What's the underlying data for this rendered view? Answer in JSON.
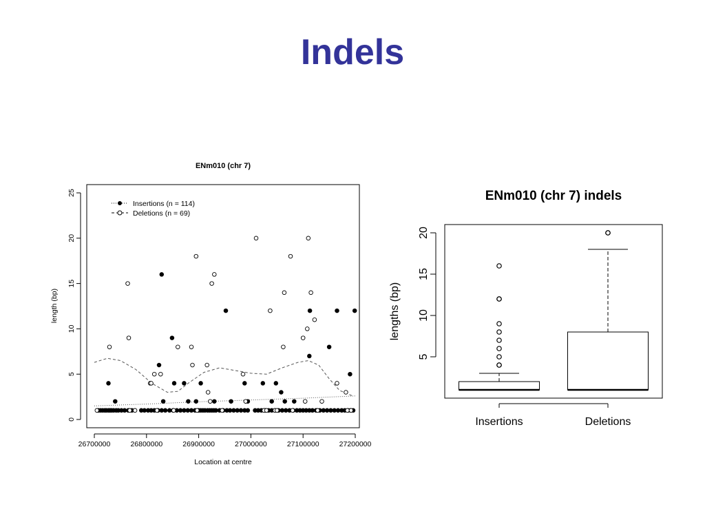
{
  "slide": {
    "title": "Indels"
  },
  "chart_data": [
    {
      "type": "scatter",
      "title": "ENm010 (chr 7)",
      "xlabel": "Location at centre",
      "ylabel": "length (bp)",
      "xlim": [
        26700000,
        27200000
      ],
      "ylim": [
        0,
        25
      ],
      "x_ticks": [
        "26700000",
        "26800000",
        "26900000",
        "27000000",
        "27100000",
        "27200000"
      ],
      "y_ticks": [
        "0",
        "5",
        "10",
        "15",
        "20",
        "25"
      ],
      "legend": {
        "position": "top-left"
      },
      "series": [
        {
          "name": "Insertions (n = 114)",
          "marker": "filled-circle",
          "color": "#000000",
          "points": [
            [
              26708000,
              1
            ],
            [
              26712000,
              1
            ],
            [
              26716000,
              1
            ],
            [
              26720000,
              1
            ],
            [
              26723000,
              1
            ],
            [
              26727000,
              1
            ],
            [
              26730000,
              1
            ],
            [
              26733000,
              1
            ],
            [
              26737000,
              1
            ],
            [
              26742000,
              1
            ],
            [
              26746000,
              1
            ],
            [
              26752000,
              1
            ],
            [
              26758000,
              1
            ],
            [
              26765000,
              1
            ],
            [
              26772000,
              1
            ],
            [
              26790000,
              1
            ],
            [
              26796000,
              1
            ],
            [
              26803000,
              1
            ],
            [
              26809000,
              1
            ],
            [
              26815000,
              1
            ],
            [
              26822000,
              1
            ],
            [
              26829000,
              1
            ],
            [
              26836000,
              1
            ],
            [
              26844000,
              1
            ],
            [
              26851000,
              1
            ],
            [
              26858000,
              1
            ],
            [
              26865000,
              1
            ],
            [
              26872000,
              1
            ],
            [
              26879000,
              1
            ],
            [
              26886000,
              1
            ],
            [
              26893000,
              1
            ],
            [
              26900000,
              1
            ],
            [
              26904000,
              1
            ],
            [
              26908000,
              1
            ],
            [
              26912000,
              1
            ],
            [
              26917000,
              1
            ],
            [
              26921000,
              1
            ],
            [
              26925000,
              1
            ],
            [
              26929000,
              1
            ],
            [
              26933000,
              1
            ],
            [
              26940000,
              1
            ],
            [
              26947000,
              1
            ],
            [
              26954000,
              1
            ],
            [
              26960000,
              1
            ],
            [
              26967000,
              1
            ],
            [
              26974000,
              1
            ],
            [
              26981000,
              1
            ],
            [
              26988000,
              1
            ],
            [
              26994000,
              1
            ],
            [
              27008000,
              1
            ],
            [
              27014000,
              1
            ],
            [
              27020000,
              1
            ],
            [
              27027000,
              1
            ],
            [
              27034000,
              1
            ],
            [
              27040000,
              1
            ],
            [
              27046000,
              1
            ],
            [
              27053000,
              1
            ],
            [
              27060000,
              1
            ],
            [
              27067000,
              1
            ],
            [
              27074000,
              1
            ],
            [
              27081000,
              1
            ],
            [
              27088000,
              1
            ],
            [
              27094000,
              1
            ],
            [
              27100000,
              1
            ],
            [
              27106000,
              1
            ],
            [
              27112000,
              1
            ],
            [
              27118000,
              1
            ],
            [
              27125000,
              1
            ],
            [
              27132000,
              1
            ],
            [
              27139000,
              1
            ],
            [
              27146000,
              1
            ],
            [
              27153000,
              1
            ],
            [
              27160000,
              1
            ],
            [
              27167000,
              1
            ],
            [
              27174000,
              1
            ],
            [
              27180000,
              1
            ],
            [
              27186000,
              1
            ],
            [
              27191000,
              1
            ],
            [
              27196000,
              1
            ],
            [
              26727000,
              4
            ],
            [
              26740000,
              2
            ],
            [
              26824000,
              6
            ],
            [
              26829000,
              16
            ],
            [
              26832000,
              2
            ],
            [
              26849000,
              9
            ],
            [
              26853000,
              4
            ],
            [
              26872000,
              4
            ],
            [
              26880000,
              2
            ],
            [
              26895000,
              2
            ],
            [
              26904000,
              4
            ],
            [
              26930000,
              2
            ],
            [
              26952000,
              12
            ],
            [
              26962000,
              2
            ],
            [
              26988000,
              4
            ],
            [
              26994000,
              2
            ],
            [
              27023000,
              4
            ],
            [
              27040000,
              2
            ],
            [
              27048000,
              4
            ],
            [
              27058000,
              3
            ],
            [
              27065000,
              2
            ],
            [
              27083000,
              2
            ],
            [
              27112000,
              7
            ],
            [
              27113000,
              12
            ],
            [
              27150000,
              8
            ],
            [
              27165000,
              12
            ],
            [
              27190000,
              5
            ],
            [
              27199000,
              12
            ]
          ]
        },
        {
          "name": "Deletions (n = 69)",
          "marker": "open-circle",
          "color": "#000000",
          "points": [
            [
              26705000,
              1
            ],
            [
              26729000,
              8
            ],
            [
              26764000,
              15
            ],
            [
              26766000,
              9
            ],
            [
              26768000,
              1
            ],
            [
              26778000,
              1
            ],
            [
              26807000,
              4
            ],
            [
              26809000,
              4
            ],
            [
              26815000,
              5
            ],
            [
              26820000,
              1
            ],
            [
              26827000,
              5
            ],
            [
              26852000,
              1
            ],
            [
              26860000,
              8
            ],
            [
              26886000,
              8
            ],
            [
              26888000,
              6
            ],
            [
              26895000,
              18
            ],
            [
              26897000,
              1
            ],
            [
              26916000,
              6
            ],
            [
              26918000,
              3
            ],
            [
              26922000,
              2
            ],
            [
              26925000,
              15
            ],
            [
              26930000,
              16
            ],
            [
              26945000,
              1
            ],
            [
              26985000,
              5
            ],
            [
              26990000,
              2
            ],
            [
              27010000,
              20
            ],
            [
              27025000,
              1
            ],
            [
              27030000,
              1
            ],
            [
              27037000,
              12
            ],
            [
              27046000,
              1
            ],
            [
              27050000,
              1
            ],
            [
              27062000,
              8
            ],
            [
              27064000,
              14
            ],
            [
              27076000,
              18
            ],
            [
              27080000,
              1
            ],
            [
              27100000,
              9
            ],
            [
              27104000,
              2
            ],
            [
              27108000,
              10
            ],
            [
              27110000,
              20
            ],
            [
              27115000,
              14
            ],
            [
              27122000,
              11
            ],
            [
              27128000,
              1
            ],
            [
              27136000,
              2
            ],
            [
              27165000,
              4
            ],
            [
              27182000,
              3
            ],
            [
              27185000,
              1
            ],
            [
              27192000,
              1
            ]
          ]
        }
      ],
      "smooth_lines": [
        {
          "series": "Insertions (n = 114)",
          "style": "dotted",
          "points": [
            [
              26700000,
              1.5
            ],
            [
              26800000,
              1.7
            ],
            [
              26900000,
              1.95
            ],
            [
              27000000,
              2.15
            ],
            [
              27100000,
              2.35
            ],
            [
              27200000,
              2.6
            ]
          ]
        },
        {
          "series": "Deletions (n = 69)",
          "style": "dashed",
          "points": [
            [
              26700000,
              6.3
            ],
            [
              26725000,
              6.75
            ],
            [
              26750000,
              6.5
            ],
            [
              26780000,
              5.5
            ],
            [
              26810000,
              4.0
            ],
            [
              26840000,
              3.0
            ],
            [
              26860000,
              3.1
            ],
            [
              26880000,
              4.0
            ],
            [
              26910000,
              5.2
            ],
            [
              26940000,
              5.7
            ],
            [
              26970000,
              5.4
            ],
            [
              27000000,
              5.1
            ],
            [
              27030000,
              5.0
            ],
            [
              27060000,
              5.7
            ],
            [
              27090000,
              6.3
            ],
            [
              27110000,
              6.5
            ],
            [
              27130000,
              6.0
            ],
            [
              27150000,
              4.5
            ],
            [
              27170000,
              3.2
            ],
            [
              27195000,
              2.6
            ]
          ]
        }
      ]
    },
    {
      "type": "box",
      "title": "ENm010 (chr 7) indels",
      "ylabel": "lengths (bp)",
      "categories": [
        "Insertions",
        "Deletions"
      ],
      "ylim": [
        0,
        21
      ],
      "y_ticks": [
        "5",
        "10",
        "15",
        "20"
      ],
      "boxes": [
        {
          "name": "Insertions",
          "whisker_low": 1,
          "q1": 1,
          "median": 1,
          "q3": 2,
          "whisker_high": 3,
          "outliers": [
            4,
            4,
            5,
            6,
            7,
            8,
            9,
            12,
            12,
            16
          ]
        },
        {
          "name": "Deletions",
          "whisker_low": 1,
          "q1": 1,
          "median": 1,
          "q3": 8,
          "whisker_high": 18,
          "outliers": [
            20,
            20
          ]
        }
      ]
    }
  ]
}
